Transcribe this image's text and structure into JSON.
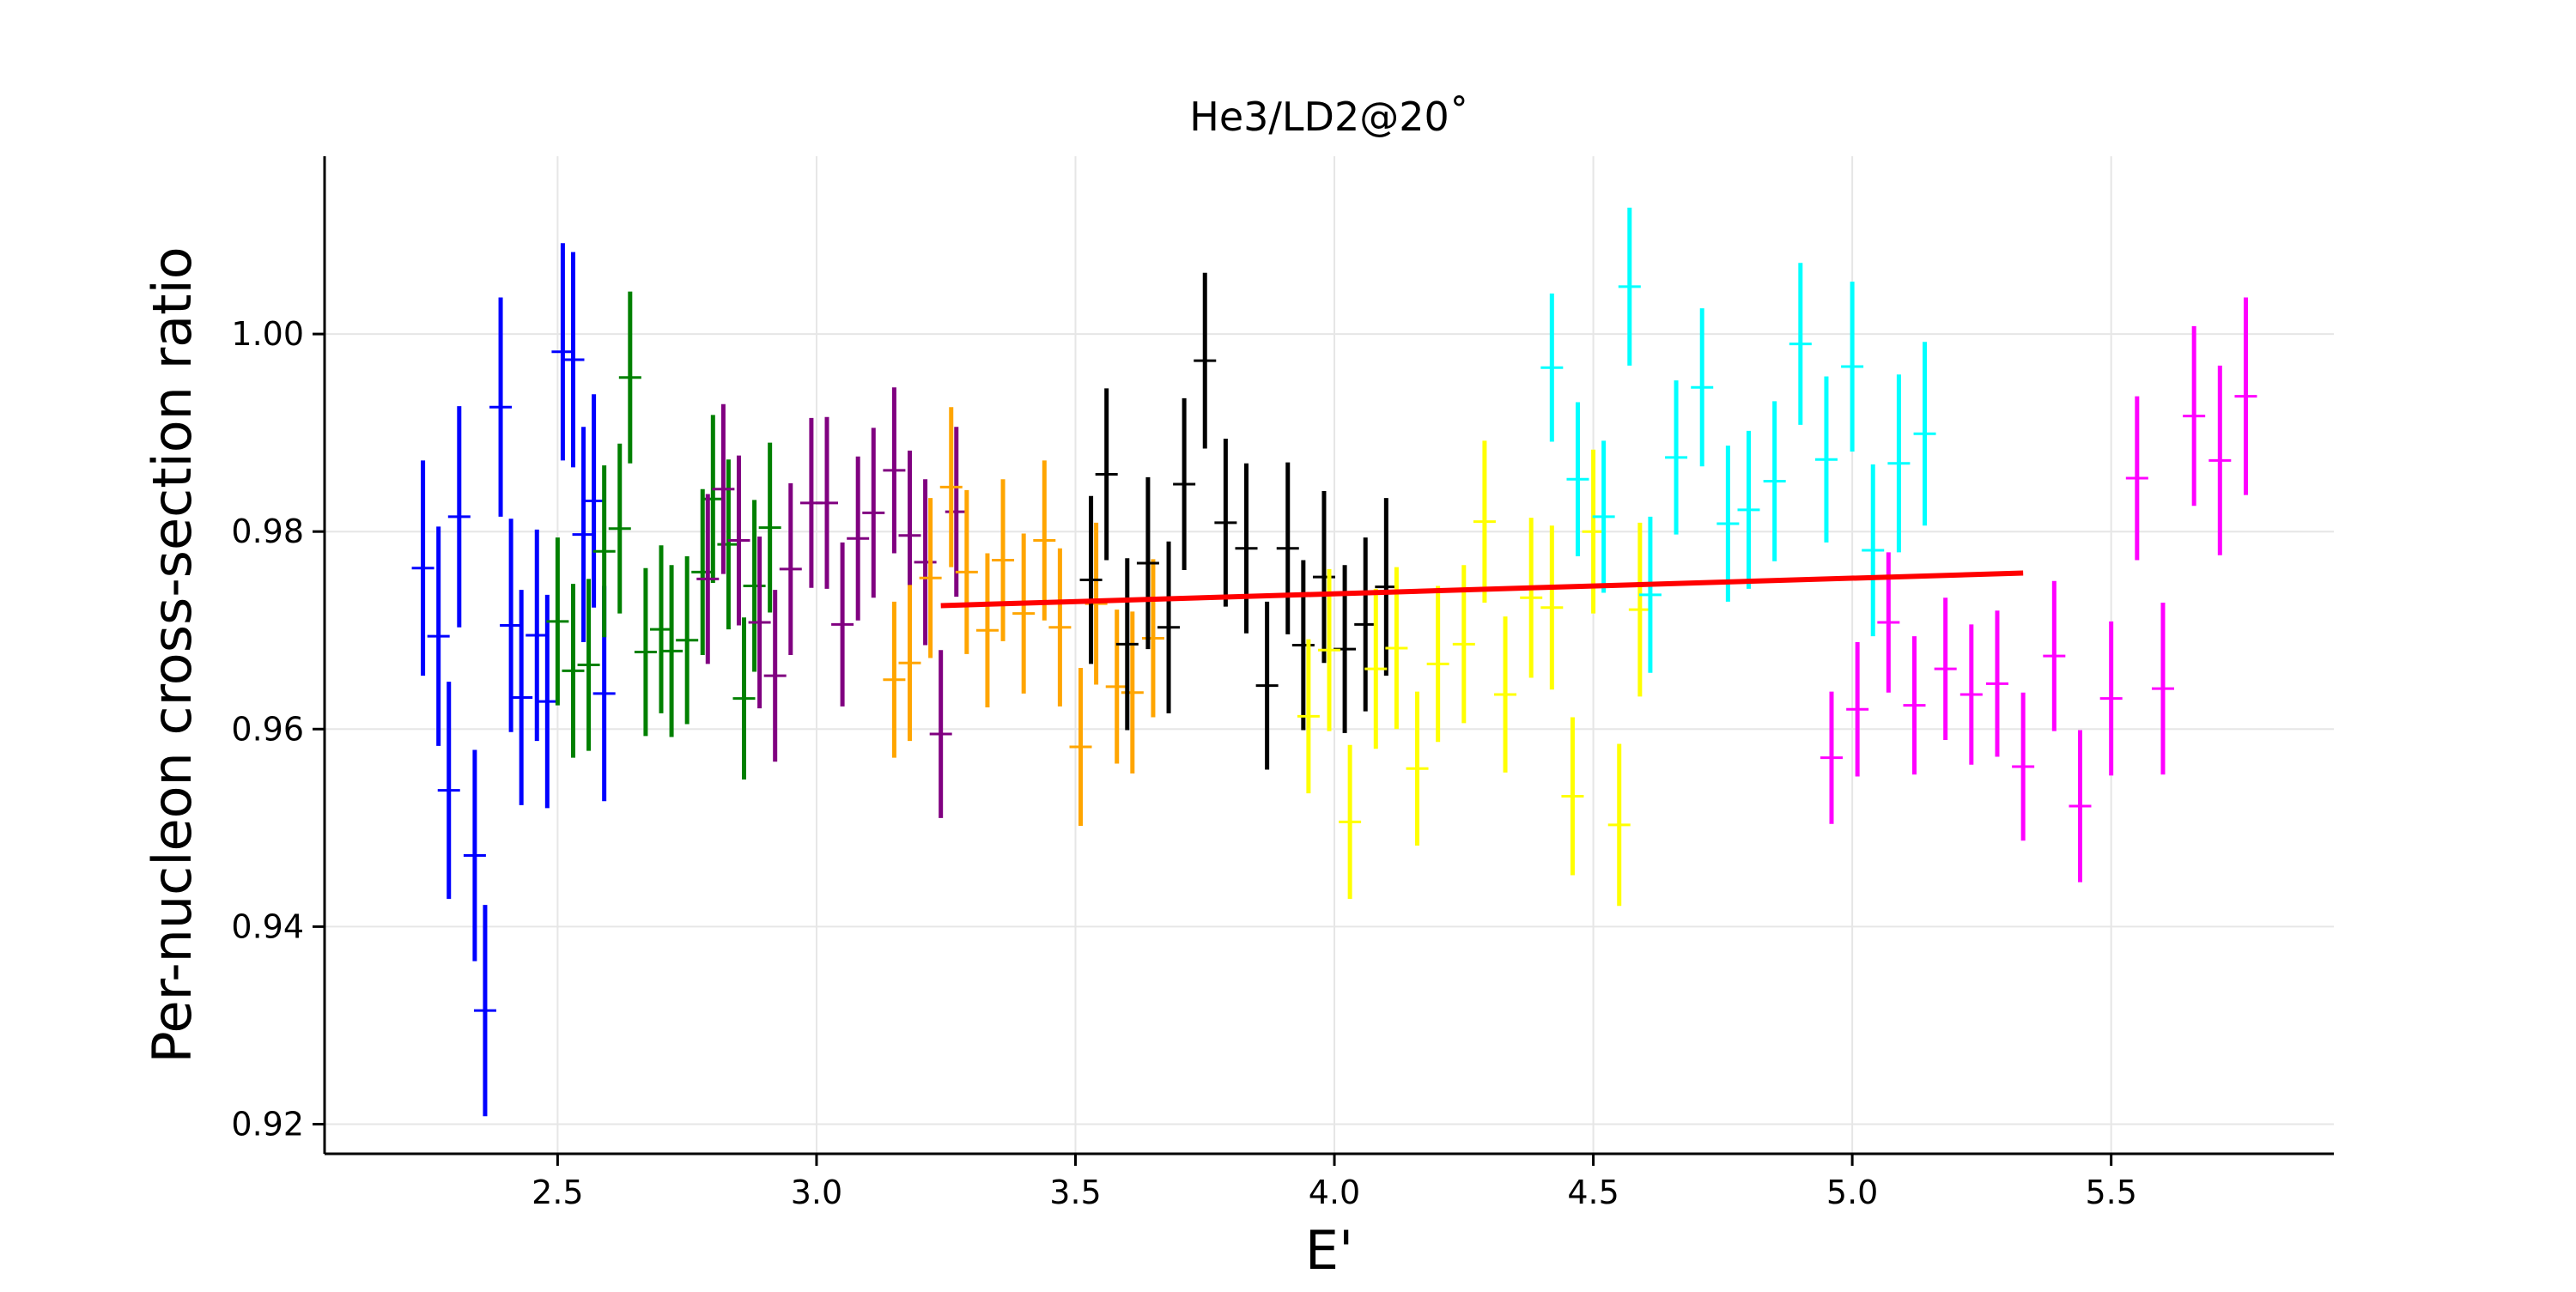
{
  "chart_data": {
    "type": "scatter",
    "title": "He3/LD2@20˚",
    "xlabel": "E'",
    "ylabel": "Per-nucleon cross-section ratio",
    "xlim": [
      2.05,
      5.93
    ],
    "ylim": [
      0.917,
      1.018
    ],
    "xticks": [
      "2.5",
      "3.0",
      "3.5",
      "4.0",
      "4.5",
      "5.0",
      "5.5"
    ],
    "yticks": [
      "0.92",
      "0.94",
      "0.96",
      "0.98",
      "1.00"
    ],
    "grid": true,
    "marker": "errorbar",
    "series": [
      {
        "color": "#0000ff",
        "x": [
          2.24,
          2.27,
          2.29,
          2.31,
          2.34,
          2.36,
          2.39,
          2.41,
          2.43,
          2.46,
          2.48,
          2.51,
          2.53,
          2.55,
          2.57,
          2.59
        ],
        "y": [
          0.9763,
          0.9694,
          0.9538,
          0.9815,
          0.9472,
          0.9315,
          0.9926,
          0.9705,
          0.9632,
          0.9695,
          0.9628,
          0.9982,
          0.9974,
          0.9797,
          0.9831,
          0.9636
        ],
        "err": [
          0.0109,
          0.0111,
          0.011,
          0.0112,
          0.0107,
          0.0107,
          0.0111,
          0.0108,
          0.0109,
          0.0107,
          0.0108,
          0.011,
          0.0109,
          0.0109,
          0.0108,
          0.0109
        ]
      },
      {
        "color": "#008000",
        "x": [
          2.5,
          2.53,
          2.56,
          2.59,
          2.62,
          2.64,
          2.67,
          2.7,
          2.72,
          2.75,
          2.78,
          2.8,
          2.83,
          2.86,
          2.88,
          2.91
        ],
        "y": [
          0.9709,
          0.9659,
          0.9665,
          0.978,
          0.9803,
          0.9956,
          0.9678,
          0.9701,
          0.9679,
          0.969,
          0.9759,
          0.9833,
          0.9787,
          0.9631,
          0.9745,
          0.9804
        ],
        "err": [
          0.0085,
          0.0088,
          0.0087,
          0.0087,
          0.0086,
          0.0087,
          0.0085,
          0.0085,
          0.0087,
          0.0085,
          0.0084,
          0.0085,
          0.0086,
          0.0082,
          0.0087,
          0.0086
        ]
      },
      {
        "color": "#800080",
        "x": [
          2.79,
          2.82,
          2.85,
          2.89,
          2.92,
          2.95,
          2.99,
          3.02,
          3.05,
          3.08,
          3.11,
          3.15,
          3.18,
          3.21,
          3.24,
          3.27
        ],
        "y": [
          0.9752,
          0.9843,
          0.9791,
          0.9708,
          0.9654,
          0.9762,
          0.9829,
          0.9829,
          0.9706,
          0.9793,
          0.9819,
          0.9862,
          0.9796,
          0.9769,
          0.9595,
          0.982
        ],
        "err": [
          0.0086,
          0.0086,
          0.0086,
          0.0087,
          0.0087,
          0.0087,
          0.0086,
          0.0087,
          0.0083,
          0.0083,
          0.0086,
          0.0084,
          0.0086,
          0.0084,
          0.0085,
          0.0086
        ]
      },
      {
        "color": "#ffa500",
        "x": [
          3.15,
          3.18,
          3.22,
          3.26,
          3.29,
          3.33,
          3.36,
          3.4,
          3.44,
          3.47,
          3.51,
          3.54,
          3.58,
          3.61,
          3.65
        ],
        "y": [
          0.965,
          0.9667,
          0.9753,
          0.9845,
          0.9759,
          0.97,
          0.9771,
          0.9717,
          0.9791,
          0.9703,
          0.9582,
          0.9727,
          0.9643,
          0.9637,
          0.9692
        ],
        "err": [
          0.0079,
          0.0079,
          0.0081,
          0.0081,
          0.0083,
          0.0078,
          0.0082,
          0.0081,
          0.0081,
          0.008,
          0.008,
          0.0082,
          0.0078,
          0.0082,
          0.008
        ]
      },
      {
        "color": "#000000",
        "x": [
          3.53,
          3.56,
          3.6,
          3.64,
          3.68,
          3.71,
          3.75,
          3.79,
          3.83,
          3.87,
          3.91,
          3.94,
          3.98,
          4.02,
          4.06,
          4.1
        ],
        "y": [
          0.9751,
          0.9858,
          0.9686,
          0.9768,
          0.9703,
          0.9848,
          0.9973,
          0.9809,
          0.9783,
          0.9644,
          0.9783,
          0.9685,
          0.9754,
          0.9681,
          0.9706,
          0.9744
        ],
        "err": [
          0.0085,
          0.0087,
          0.0087,
          0.0087,
          0.0087,
          0.0087,
          0.0089,
          0.0085,
          0.0086,
          0.0085,
          0.0087,
          0.0086,
          0.0087,
          0.0085,
          0.0088,
          0.009
        ]
      },
      {
        "color": "#ffff00",
        "x": [
          3.95,
          3.99,
          4.03,
          4.08,
          4.12,
          4.16,
          4.2,
          4.25,
          4.29,
          4.33,
          4.38,
          4.42,
          4.46,
          4.5,
          4.55,
          4.59
        ],
        "y": [
          0.9613,
          0.968,
          0.9506,
          0.9661,
          0.9682,
          0.956,
          0.9666,
          0.9686,
          0.981,
          0.9635,
          0.9733,
          0.9723,
          0.9532,
          0.98,
          0.9503,
          0.9721
        ],
        "err": [
          0.0078,
          0.0082,
          0.0078,
          0.0081,
          0.0082,
          0.0078,
          0.0079,
          0.008,
          0.0082,
          0.0079,
          0.0081,
          0.0083,
          0.008,
          0.0083,
          0.0082,
          0.0088
        ]
      },
      {
        "color": "#00ffff",
        "x": [
          4.42,
          4.47,
          4.52,
          4.57,
          4.61,
          4.66,
          4.71,
          4.76,
          4.8,
          4.85,
          4.9,
          4.95,
          5.0,
          5.04,
          5.09,
          5.14
        ],
        "y": [
          0.9966,
          0.9853,
          0.9815,
          1.0048,
          0.9736,
          0.9875,
          0.9946,
          0.9808,
          0.9822,
          0.9851,
          0.999,
          0.9873,
          0.9967,
          0.9781,
          0.9869,
          0.9899
        ],
        "err": [
          0.0075,
          0.0078,
          0.0077,
          0.008,
          0.0079,
          0.0078,
          0.008,
          0.0079,
          0.008,
          0.0081,
          0.0082,
          0.0084,
          0.0086,
          0.0087,
          0.009,
          0.0093
        ]
      },
      {
        "color": "#ff00ff",
        "x": [
          4.96,
          5.01,
          5.07,
          5.12,
          5.18,
          5.23,
          5.28,
          5.33,
          5.39,
          5.44,
          5.5,
          5.55,
          5.6,
          5.66,
          5.71,
          5.76
        ],
        "y": [
          0.9571,
          0.962,
          0.9708,
          0.9624,
          0.9661,
          0.9635,
          0.9646,
          0.9562,
          0.9674,
          0.9522,
          0.9631,
          0.9854,
          0.9641,
          0.9917,
          0.9872,
          0.9937
        ],
        "err": [
          0.0067,
          0.0068,
          0.0071,
          0.007,
          0.0072,
          0.0071,
          0.0074,
          0.0075,
          0.0076,
          0.0077,
          0.0078,
          0.0083,
          0.0087,
          0.0091,
          0.0096,
          0.01
        ]
      }
    ],
    "fit_line": {
      "color": "#ff0000",
      "x": [
        3.24,
        5.33
      ],
      "y": [
        0.9725,
        0.9758
      ]
    }
  }
}
